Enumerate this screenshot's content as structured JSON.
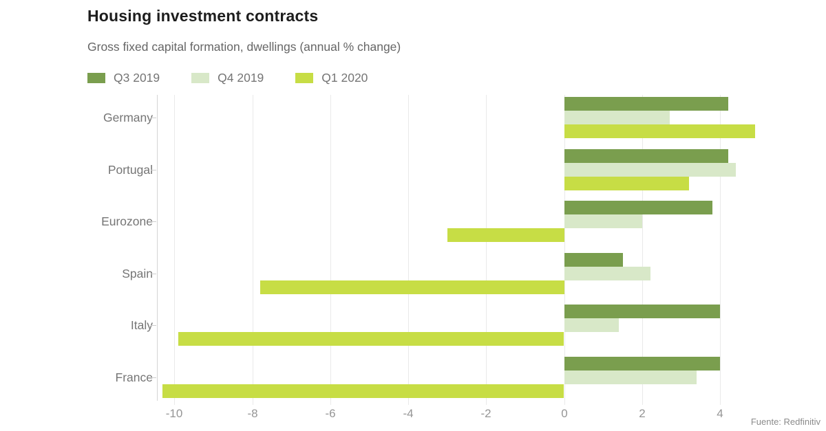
{
  "header": {
    "title": "Housing investment contracts",
    "subtitle": "Gross fixed capital formation, dwellings (annual % change)"
  },
  "source": "Fuente: Redfinitiv",
  "colors": {
    "q3_2019": "#7a9e4e",
    "q4_2019": "#d8e8c8",
    "q1_2020": "#c7dd45",
    "gridline": "#e9e9e9",
    "axis_edge": "#d4d4d4",
    "label_text": "#757575"
  },
  "chart_data": {
    "type": "bar",
    "orientation": "horizontal",
    "title": "Housing investment contracts",
    "subtitle": "Gross fixed capital formation, dwellings (annual % change)",
    "categories": [
      "Germany",
      "Portugal",
      "Eurozone",
      "Spain",
      "Italy",
      "France"
    ],
    "series": [
      {
        "name": "Q3 2019",
        "color": "#7a9e4e",
        "values": [
          4.2,
          4.2,
          3.8,
          1.5,
          4.0,
          4.0
        ]
      },
      {
        "name": "Q4 2019",
        "color": "#d8e8c8",
        "values": [
          2.7,
          4.4,
          2.0,
          2.2,
          1.4,
          3.4
        ]
      },
      {
        "name": "Q1 2020",
        "color": "#c7dd45",
        "values": [
          4.9,
          3.2,
          -3.0,
          -7.8,
          -9.9,
          -10.3
        ]
      }
    ],
    "xlabel": "",
    "ylabel": "",
    "xticks": [
      -10,
      -8,
      -6,
      -4,
      -2,
      0,
      2,
      4
    ],
    "xlim": [
      -10.45,
      5.5
    ],
    "grid": true,
    "legend_position": "top-left"
  }
}
